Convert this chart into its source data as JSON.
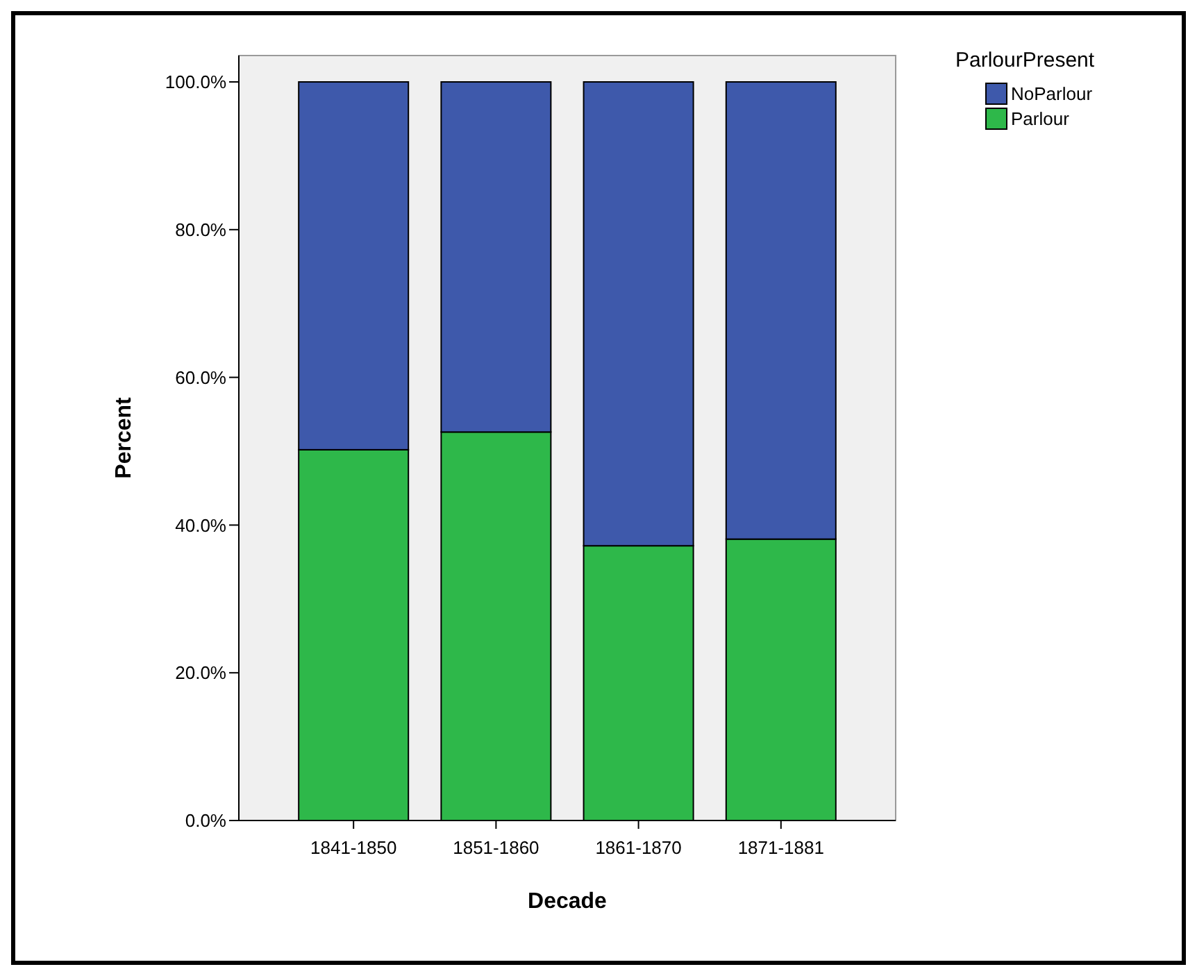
{
  "chart_data": {
    "type": "bar",
    "stacked": true,
    "xlabel": "Decade",
    "ylabel": "Percent",
    "legend_title": "ParlourPresent",
    "legend": "top right",
    "categories": [
      "1841-1850",
      "1851-1860",
      "1861-1870",
      "1871-1881"
    ],
    "series": [
      {
        "name": "Parlour",
        "color": "#2eb84a",
        "values": [
          50.2,
          52.6,
          37.2,
          38.1
        ]
      },
      {
        "name": "NoParlour",
        "color": "#3e59ab",
        "values": [
          49.8,
          47.4,
          62.8,
          61.9
        ]
      }
    ],
    "ylim": [
      0,
      100
    ],
    "yticks": [
      {
        "value": 0,
        "label": "0.0%"
      },
      {
        "value": 20,
        "label": "20.0%"
      },
      {
        "value": 40,
        "label": "40.0%"
      },
      {
        "value": 60,
        "label": "60.0%"
      },
      {
        "value": 80,
        "label": "80.0%"
      },
      {
        "value": 100,
        "label": "100.0%"
      }
    ]
  }
}
